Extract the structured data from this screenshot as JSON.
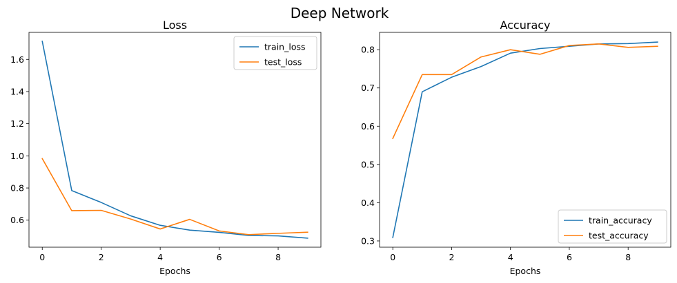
{
  "figure": {
    "suptitle": "Deep Network"
  },
  "chart_data": [
    {
      "type": "line",
      "title": "Loss",
      "xlabel": "Epochs",
      "ylabel": "",
      "x": [
        0,
        1,
        2,
        3,
        4,
        5,
        6,
        7,
        8,
        9
      ],
      "xlim": [
        -0.45,
        9.45
      ],
      "ylim": [
        0.4318,
        1.7682
      ],
      "xticks": [
        0,
        2,
        4,
        6,
        8
      ],
      "yticks": [
        0.6,
        0.8,
        1.0,
        1.2,
        1.4,
        1.6
      ],
      "ytick_labels": [
        "0.6",
        "0.8",
        "1.0",
        "1.2",
        "1.4",
        "1.6"
      ],
      "legend_position": "upper right",
      "grid": false,
      "series": [
        {
          "name": "train_loss",
          "color": "#1f77b4",
          "values": [
            1.713,
            0.784,
            0.71,
            0.627,
            0.568,
            0.538,
            0.524,
            0.505,
            0.502,
            0.488
          ]
        },
        {
          "name": "test_loss",
          "color": "#ff7f0e",
          "values": [
            0.983,
            0.659,
            0.661,
            0.607,
            0.545,
            0.605,
            0.533,
            0.51,
            0.518,
            0.525
          ]
        }
      ]
    },
    {
      "type": "line",
      "title": "Accuracy",
      "xlabel": "Epochs",
      "ylabel": "",
      "x": [
        0,
        1,
        2,
        3,
        4,
        5,
        6,
        7,
        8,
        9
      ],
      "xlim": [
        -0.45,
        9.45
      ],
      "ylim": [
        0.2837,
        0.8453
      ],
      "xticks": [
        0,
        2,
        4,
        6,
        8
      ],
      "yticks": [
        0.3,
        0.4,
        0.5,
        0.6,
        0.7,
        0.8
      ],
      "ytick_labels": [
        "0.3",
        "0.4",
        "0.5",
        "0.6",
        "0.7",
        "0.8"
      ],
      "legend_position": "lower right",
      "grid": false,
      "series": [
        {
          "name": "train_accuracy",
          "color": "#1f77b4",
          "values": [
            0.309,
            0.69,
            0.728,
            0.756,
            0.791,
            0.803,
            0.809,
            0.815,
            0.816,
            0.82
          ]
        },
        {
          "name": "test_accuracy",
          "color": "#ff7f0e",
          "values": [
            0.568,
            0.735,
            0.735,
            0.781,
            0.8,
            0.788,
            0.811,
            0.815,
            0.806,
            0.809
          ]
        }
      ]
    }
  ]
}
